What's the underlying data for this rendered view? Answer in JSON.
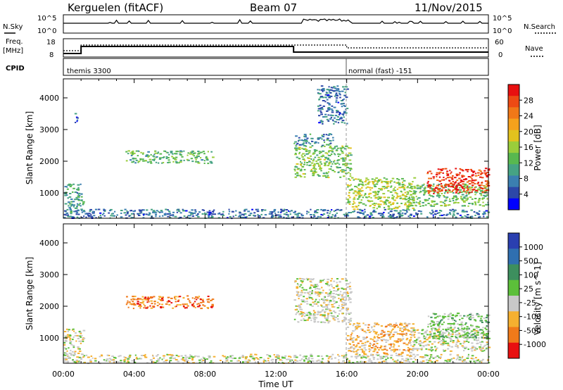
{
  "header": {
    "station": "Kerguelen (fitACF)",
    "beam": "Beam 07",
    "date": "11/Nov/2015"
  },
  "summary_panels": {
    "nsky_label": "N.Sky",
    "nsky_ticks": [
      "10^5",
      "10^0"
    ],
    "nsearch_label": "N.Search",
    "nsearch_ticks": [
      "10^5",
      "10^0"
    ],
    "freq_label": "Freq.",
    "freq_unit": "[MHz]",
    "freq_ticks": [
      "18",
      "8"
    ],
    "nave_label": "Nave",
    "nave_ticks": [
      "60",
      "0"
    ],
    "cpid_label": "CPID",
    "cpid_modes": [
      {
        "name": "themis 3300",
        "start_hour": 0
      },
      {
        "name": "normal (fast) -151",
        "start_hour": 16
      }
    ]
  },
  "chart_data": [
    {
      "type": "heatmap",
      "name": "power",
      "ylabel": "Slant Range [km]",
      "xlabel": "",
      "yticks": [
        "1000",
        "2000",
        "3000",
        "4000"
      ],
      "ylim": [
        200,
        4600
      ],
      "xlim_hours": [
        0,
        24
      ],
      "colorbar": {
        "label": "Power [dB]",
        "ticks": [
          "4",
          "8",
          "12",
          "16",
          "20",
          "24",
          "28"
        ],
        "range": [
          0,
          32
        ],
        "colors": [
          "#0000ff",
          "#2c47a8",
          "#3b7fb0",
          "#46a383",
          "#58b84f",
          "#9acd3b",
          "#e2c21e",
          "#f5a11c",
          "#f07818",
          "#ed4a14",
          "#e81010"
        ]
      },
      "regions": [
        {
          "t0": 0.0,
          "t1": 24.0,
          "r0": 220,
          "r1": 500,
          "level": 6,
          "note": "near-range scatter"
        },
        {
          "t0": 0.0,
          "t1": 1.1,
          "r0": 400,
          "r1": 1300,
          "level": 9
        },
        {
          "t0": 0.6,
          "t1": 0.8,
          "r0": 3200,
          "r1": 3600,
          "level": 5
        },
        {
          "t0": 3.5,
          "t1": 8.4,
          "r0": 1950,
          "r1": 2350,
          "level": 12
        },
        {
          "t0": 13.0,
          "t1": 16.2,
          "r0": 1500,
          "r1": 2500,
          "level": 14
        },
        {
          "t0": 13.0,
          "t1": 15.2,
          "r0": 2500,
          "r1": 2900,
          "level": 8
        },
        {
          "t0": 14.3,
          "t1": 16.0,
          "r0": 3200,
          "r1": 4400,
          "level": 6
        },
        {
          "t0": 16.0,
          "t1": 19.8,
          "r0": 500,
          "r1": 1500,
          "level": 16
        },
        {
          "t0": 19.5,
          "t1": 24.0,
          "r0": 600,
          "r1": 1300,
          "level": 13
        },
        {
          "t0": 20.5,
          "t1": 24.0,
          "r0": 1000,
          "r1": 1800,
          "level": 30
        }
      ]
    },
    {
      "type": "heatmap",
      "name": "velocity",
      "ylabel": "Slant Range [km]",
      "xlabel": "Time UT",
      "yticks": [
        "1000",
        "2000",
        "3000",
        "4000"
      ],
      "xticks": [
        "00:00",
        "04:00",
        "08:00",
        "12:00",
        "16:00",
        "20:00",
        "00:00"
      ],
      "ylim": [
        200,
        4600
      ],
      "xlim_hours": [
        0,
        24
      ],
      "colorbar": {
        "label": "Velocity [m s^-1]",
        "ticks": [
          "1000",
          "500",
          "100",
          "25",
          "-25",
          "-100",
          "-500",
          "-1000"
        ],
        "colors": [
          "#2a3fb0",
          "#2f6fb0",
          "#3d8f5e",
          "#5cbf3a",
          "#c8c8c8",
          "#f5b030",
          "#f07a1a",
          "#e81010"
        ]
      },
      "regions": [
        {
          "t0": 0.0,
          "t1": 24.0,
          "r0": 220,
          "r1": 500,
          "level": 4,
          "note": "ground scatter near range"
        },
        {
          "t0": 0.0,
          "t1": 1.1,
          "r0": 500,
          "r1": 1300,
          "level": 4
        },
        {
          "t0": 3.5,
          "t1": 8.4,
          "r0": 1950,
          "r1": 2350,
          "level": 6
        },
        {
          "t0": 13.0,
          "t1": 16.2,
          "r0": 1500,
          "r1": 2900,
          "level": 4
        },
        {
          "t0": 16.0,
          "t1": 19.8,
          "r0": 500,
          "r1": 1500,
          "level": 5
        },
        {
          "t0": 19.5,
          "t1": 24.0,
          "r0": 600,
          "r1": 1300,
          "level": 4
        },
        {
          "t0": 20.5,
          "t1": 24.0,
          "r0": 1000,
          "r1": 1800,
          "level": 3
        }
      ]
    }
  ]
}
